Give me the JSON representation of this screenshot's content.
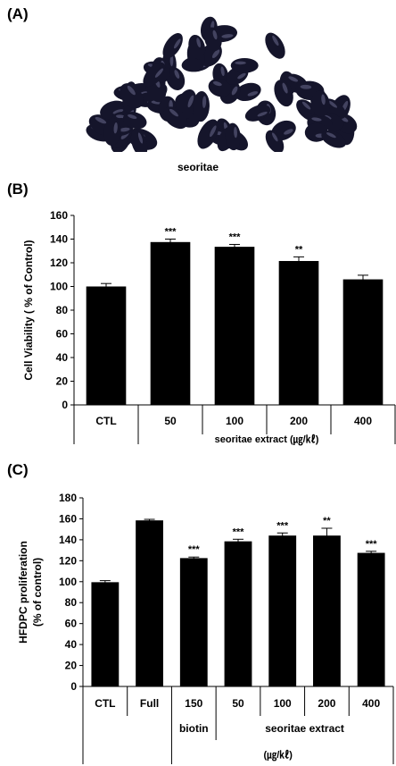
{
  "panel_labels": {
    "a": "(A)",
    "b": "(B)",
    "c": "(C)"
  },
  "photo": {
    "caption": "seoritae",
    "colors": {
      "bean": "#15152b",
      "highlight": "#6a6a8c"
    }
  },
  "chart_data": [
    {
      "id": "B",
      "type": "bar",
      "categories": [
        "CTL",
        "50",
        "100",
        "200",
        "400"
      ],
      "values": [
        100,
        137.5,
        133.5,
        121.5,
        106
      ],
      "errors": [
        2.5,
        2.5,
        2,
        3.5,
        3.5
      ],
      "significance": [
        "",
        "***",
        "***",
        "**",
        ""
      ],
      "ylabel": "Cell Viability ( % of Control)",
      "ylim": [
        0,
        160
      ],
      "yticks": [
        0,
        20,
        40,
        60,
        80,
        100,
        120,
        140,
        160
      ],
      "group_label": "seoritae extract (㎍/㎘)",
      "bar_color": "#000000"
    },
    {
      "id": "C",
      "type": "bar",
      "categories": [
        "CTL",
        "Full",
        "150",
        "50",
        "100",
        "200",
        "400"
      ],
      "values": [
        99.5,
        158.5,
        122.5,
        138.5,
        144,
        144,
        127.5
      ],
      "errors": [
        1.5,
        1,
        1,
        2,
        2.5,
        7,
        1.5
      ],
      "significance": [
        "",
        "",
        "***",
        "***",
        "***",
        "**",
        "***"
      ],
      "ylabel_lines": [
        "HFDPC proliferation",
        "(% of control)"
      ],
      "ylim": [
        0,
        180
      ],
      "yticks": [
        0,
        20,
        40,
        60,
        80,
        100,
        120,
        140,
        160,
        180
      ],
      "sub_labels": [
        "biotin",
        "seoritae extract"
      ],
      "unit_label": "(㎍/㎘)",
      "bar_color": "#000000"
    }
  ]
}
